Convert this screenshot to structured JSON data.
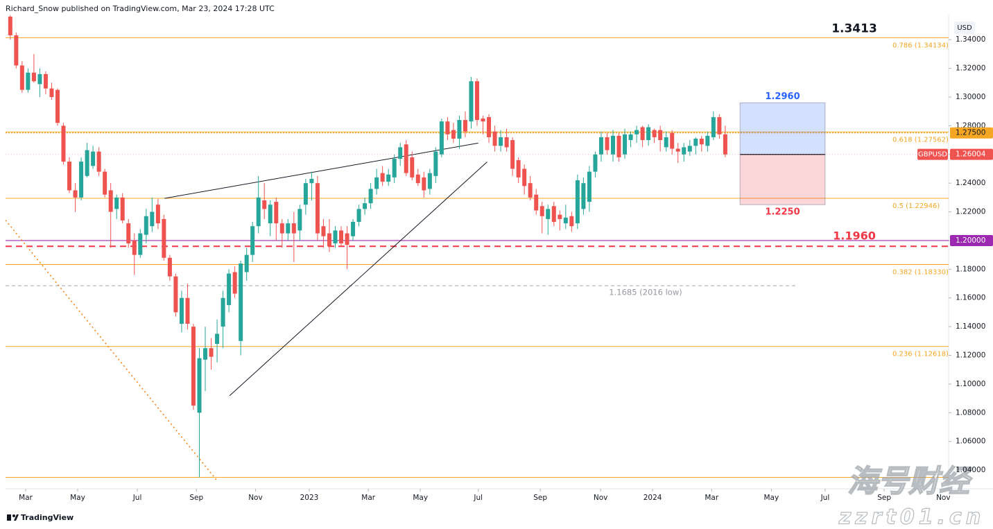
{
  "header": {
    "byline": "Richard_Snow published on TradingView.com, Mar 23, 2024 17:28 UTC"
  },
  "chart_data": {
    "type": "candlestick",
    "currency": "USD",
    "series": [
      {
        "name": "GBPUSD",
        "up_color": "#26a69a",
        "down_color": "#ef5350",
        "open": [
          1.356,
          1.343,
          1.322,
          1.305,
          1.317,
          1.309,
          1.316,
          1.306,
          1.305,
          1.28,
          1.255,
          1.235,
          1.23,
          1.245,
          1.252,
          1.262,
          1.248,
          1.235,
          1.222,
          1.23,
          1.212,
          1.2,
          1.19,
          1.204,
          1.21,
          1.225,
          1.215,
          1.188,
          1.175,
          1.142,
          1.16,
          1.14,
          1.08,
          1.117,
          1.125,
          1.128,
          1.14,
          1.155,
          1.178,
          1.13,
          1.178,
          1.19,
          1.21,
          1.228,
          1.212,
          1.227,
          1.212,
          1.205,
          1.212,
          1.207,
          1.225,
          1.24,
          1.24,
          1.21,
          1.205,
          1.198,
          1.207,
          1.205,
          1.203,
          1.213,
          1.222,
          1.226,
          1.236,
          1.247,
          1.241,
          1.244,
          1.257,
          1.267,
          1.258,
          1.246,
          1.244,
          1.236,
          1.245,
          1.26,
          1.283,
          1.277,
          1.271,
          1.284,
          1.283,
          1.311,
          1.285,
          1.286,
          1.276,
          1.266,
          1.272,
          1.27,
          1.256,
          1.25,
          1.24,
          1.232,
          1.224,
          1.215,
          1.224,
          1.218,
          1.212,
          1.217,
          1.212,
          1.222,
          1.227,
          1.248,
          1.26,
          1.272,
          1.26,
          1.273,
          1.26,
          1.27,
          1.274,
          1.279,
          1.27,
          1.277,
          1.277,
          1.265,
          1.275,
          1.264,
          1.26,
          1.262,
          1.266,
          1.271,
          1.266,
          1.272,
          1.286,
          1.274
        ],
        "high": [
          1.357,
          1.345,
          1.325,
          1.32,
          1.33,
          1.32,
          1.318,
          1.31,
          1.306,
          1.282,
          1.258,
          1.24,
          1.258,
          1.268,
          1.266,
          1.265,
          1.25,
          1.24,
          1.232,
          1.233,
          1.215,
          1.205,
          1.208,
          1.222,
          1.23,
          1.229,
          1.218,
          1.19,
          1.177,
          1.165,
          1.17,
          1.142,
          1.125,
          1.14,
          1.132,
          1.145,
          1.165,
          1.18,
          1.182,
          1.186,
          1.195,
          1.213,
          1.245,
          1.24,
          1.228,
          1.23,
          1.215,
          1.215,
          1.22,
          1.225,
          1.243,
          1.248,
          1.245,
          1.215,
          1.215,
          1.21,
          1.21,
          1.21,
          1.215,
          1.225,
          1.23,
          1.24,
          1.25,
          1.252,
          1.25,
          1.26,
          1.268,
          1.27,
          1.262,
          1.25,
          1.248,
          1.25,
          1.265,
          1.285,
          1.286,
          1.282,
          1.287,
          1.29,
          1.314,
          1.313,
          1.287,
          1.288,
          1.28,
          1.277,
          1.278,
          1.272,
          1.258,
          1.253,
          1.245,
          1.236,
          1.227,
          1.225,
          1.227,
          1.221,
          1.225,
          1.22,
          1.246,
          1.244,
          1.252,
          1.262,
          1.276,
          1.275,
          1.277,
          1.275,
          1.278,
          1.276,
          1.28,
          1.28,
          1.281,
          1.278,
          1.28,
          1.276,
          1.277,
          1.268,
          1.268,
          1.27,
          1.272,
          1.273,
          1.276,
          1.29,
          1.288,
          1.28
        ],
        "low": [
          1.34,
          1.32,
          1.303,
          1.303,
          1.31,
          1.3,
          1.302,
          1.298,
          1.28,
          1.253,
          1.233,
          1.22,
          1.228,
          1.244,
          1.25,
          1.245,
          1.23,
          1.195,
          1.215,
          1.212,
          1.195,
          1.176,
          1.188,
          1.198,
          1.206,
          1.208,
          1.186,
          1.172,
          1.147,
          1.136,
          1.138,
          1.082,
          1.035,
          1.095,
          1.11,
          1.115,
          1.125,
          1.15,
          1.16,
          1.12,
          1.172,
          1.185,
          1.205,
          1.215,
          1.203,
          1.2,
          1.195,
          1.2,
          1.185,
          1.2,
          1.218,
          1.228,
          1.2,
          1.195,
          1.192,
          1.195,
          1.196,
          1.18,
          1.2,
          1.21,
          1.218,
          1.222,
          1.232,
          1.238,
          1.238,
          1.24,
          1.252,
          1.245,
          1.242,
          1.238,
          1.23,
          1.232,
          1.24,
          1.258,
          1.27,
          1.268,
          1.264,
          1.272,
          1.278,
          1.28,
          1.274,
          1.268,
          1.262,
          1.262,
          1.262,
          1.245,
          1.24,
          1.232,
          1.228,
          1.218,
          1.205,
          1.204,
          1.21,
          1.207,
          1.208,
          1.206,
          1.208,
          1.218,
          1.22,
          1.244,
          1.255,
          1.26,
          1.255,
          1.255,
          1.257,
          1.265,
          1.268,
          1.265,
          1.266,
          1.268,
          1.262,
          1.262,
          1.26,
          1.254,
          1.255,
          1.259,
          1.26,
          1.262,
          1.262,
          1.27,
          1.271,
          1.258
        ],
        "close": [
          1.343,
          1.322,
          1.305,
          1.317,
          1.311,
          1.316,
          1.306,
          1.3,
          1.282,
          1.255,
          1.235,
          1.23,
          1.255,
          1.263,
          1.262,
          1.248,
          1.232,
          1.22,
          1.23,
          1.214,
          1.198,
          1.19,
          1.205,
          1.217,
          1.22,
          1.212,
          1.188,
          1.175,
          1.15,
          1.16,
          1.142,
          1.085,
          1.118,
          1.125,
          1.119,
          1.135,
          1.16,
          1.177,
          1.163,
          1.184,
          1.19,
          1.21,
          1.23,
          1.222,
          1.225,
          1.212,
          1.205,
          1.212,
          1.205,
          1.222,
          1.24,
          1.243,
          1.205,
          1.203,
          1.196,
          1.207,
          1.198,
          1.197,
          1.213,
          1.222,
          1.226,
          1.236,
          1.244,
          1.241,
          1.246,
          1.257,
          1.265,
          1.247,
          1.244,
          1.24,
          1.235,
          1.247,
          1.262,
          1.283,
          1.274,
          1.271,
          1.284,
          1.276,
          1.311,
          1.284,
          1.283,
          1.272,
          1.266,
          1.272,
          1.265,
          1.25,
          1.244,
          1.238,
          1.23,
          1.221,
          1.217,
          1.222,
          1.213,
          1.215,
          1.216,
          1.21,
          1.242,
          1.24,
          1.248,
          1.26,
          1.272,
          1.263,
          1.273,
          1.258,
          1.274,
          1.274,
          1.277,
          1.27,
          1.279,
          1.272,
          1.27,
          1.272,
          1.264,
          1.262,
          1.265,
          1.266,
          1.271,
          1.267,
          1.273,
          1.286,
          1.274,
          1.26
        ],
        "last_price": 1.26004
      }
    ],
    "xlim": [
      -0.8,
      158.8
    ],
    "xticks": [
      {
        "value": 2.6,
        "label": "Mar"
      },
      {
        "value": 11.4,
        "label": "May"
      },
      {
        "value": 21.5,
        "label": "Jul"
      },
      {
        "value": 31.5,
        "label": "Sep"
      },
      {
        "value": 41.5,
        "label": "Nov"
      },
      {
        "value": 50.6,
        "label": "2023"
      },
      {
        "value": 60.6,
        "label": "Mar"
      },
      {
        "value": 69.4,
        "label": "May"
      },
      {
        "value": 79.2,
        "label": "Jul"
      },
      {
        "value": 89.7,
        "label": "Sep"
      },
      {
        "value": 99.9,
        "label": "Nov"
      },
      {
        "value": 108.7,
        "label": "2024"
      },
      {
        "value": 118.7,
        "label": "Mar"
      },
      {
        "value": 128.8,
        "label": "May"
      },
      {
        "value": 137.9,
        "label": "Jul"
      },
      {
        "value": 147.9,
        "label": "Sep"
      },
      {
        "value": 157.9,
        "label": "Nov"
      }
    ],
    "ylim": [
      1.027,
      1.357
    ],
    "yticks": [
      {
        "value": 1.04,
        "label": "1.04000"
      },
      {
        "value": 1.06,
        "label": "1.06000"
      },
      {
        "value": 1.08,
        "label": "1.08000"
      },
      {
        "value": 1.1,
        "label": "1.10000"
      },
      {
        "value": 1.12,
        "label": "1.12000"
      },
      {
        "value": 1.14,
        "label": "1.14000"
      },
      {
        "value": 1.16,
        "label": "1.16000"
      },
      {
        "value": 1.18,
        "label": "1.18000"
      },
      {
        "value": 1.2,
        "label": "1.20000"
      },
      {
        "value": 1.22,
        "label": "1.22000"
      },
      {
        "value": 1.24,
        "label": "1.24000"
      },
      {
        "value": 1.26,
        "label": "1.26000"
      },
      {
        "value": 1.28,
        "label": "1.28000"
      },
      {
        "value": 1.3,
        "label": "1.30000"
      },
      {
        "value": 1.32,
        "label": "1.32000"
      },
      {
        "value": 1.34,
        "label": "1.34000"
      }
    ],
    "grid": false,
    "fib_color": "#f5a623",
    "fib_levels": [
      {
        "value": 1.34134,
        "label": "0.786 (1.34134)"
      },
      {
        "value": 1.27562,
        "label": "0.618 (1.27562)"
      },
      {
        "value": 1.22946,
        "label": "0.5 (1.22946)"
      },
      {
        "value": 1.1833,
        "label": "0.382 (1.18330)"
      },
      {
        "value": 1.12618,
        "label": "0.236 (1.12618)"
      },
      {
        "value": 1.035
      }
    ],
    "lines": [
      {
        "value": {
          "value": 1.275,
          "label": "1.27500"
        },
        "color": "#f5a623",
        "dash": "2 2",
        "label_style": "axis-tag"
      },
      {
        "value": {
          "value": 1.2,
          "label": "1.20000"
        },
        "color": "#9c27b0",
        "dash": "none",
        "label_style": "axis-tag"
      },
      {
        "value": {
          "value": 1.196,
          "label": "1.1960"
        },
        "color": "#f23645",
        "dash": "9 6",
        "label_style": "callout"
      },
      {
        "value": {
          "value": 1.1685,
          "label": "1.1685 (2016 low)"
        },
        "color": "#b2b5be",
        "dash": "5 4",
        "label_style": "note",
        "end": 133.2
      }
    ],
    "callouts": [
      {
        "value": 1.3413,
        "color": "#131722"
      }
    ],
    "trendlines": [
      {
        "x": [
          26.1,
          79.2
        ],
        "y": [
          1.2294,
          1.2679
        ],
        "color": "#131722",
        "dash": "none"
      },
      {
        "x": [
          37.1,
          80.7
        ],
        "y": [
          1.0918,
          1.2548
        ],
        "color": "#131722",
        "dash": "none"
      },
      {
        "x": [
          -0.8,
          34.9
        ],
        "y": [
          1.2142,
          1.0332
        ],
        "color": "#f57c00",
        "dash": "2 4"
      }
    ],
    "position": {
      "start": 123.5,
      "end": 137.9,
      "entry": 1.26,
      "target": {
        "value": 1.296,
        "label": "1.2960"
      },
      "stop": {
        "value": 1.225,
        "label": "1.2250"
      },
      "target_color": "#2962ff",
      "stop_color": "#f23645"
    }
  },
  "footer": {
    "brand": "TradingView"
  },
  "watermark": {
    "title": "海号财经",
    "site": "zzrt01.cn"
  }
}
